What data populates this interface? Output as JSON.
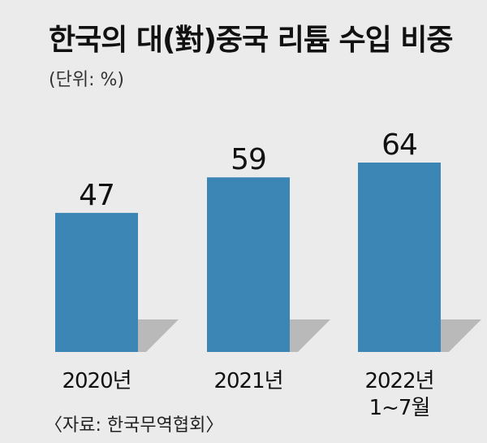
{
  "title": "한국의 대(對)중국 리튬 수입 비중",
  "unit_note": "(단위: %)",
  "source": "〈자료: 한국무역협회〉",
  "colors": {
    "background": "#ebebeb",
    "bar": "#3b86b5",
    "shadow": "#b9b9b9",
    "text": "#111111"
  },
  "chart_data": {
    "type": "bar",
    "title": "한국의 대(對)중국 리튬 수입 비중",
    "ylabel": "(단위: %)",
    "xlabel": "",
    "categories": [
      "2020년",
      "2021년",
      "2022년 1~7월"
    ],
    "category_lines": [
      [
        "2020년"
      ],
      [
        "2021년"
      ],
      [
        "2022년",
        "1~7월"
      ]
    ],
    "values": [
      47,
      59,
      64
    ],
    "data_labels": [
      "47",
      "59",
      "64"
    ],
    "ylim": [
      0,
      64
    ],
    "grid": false,
    "legend": "none"
  }
}
